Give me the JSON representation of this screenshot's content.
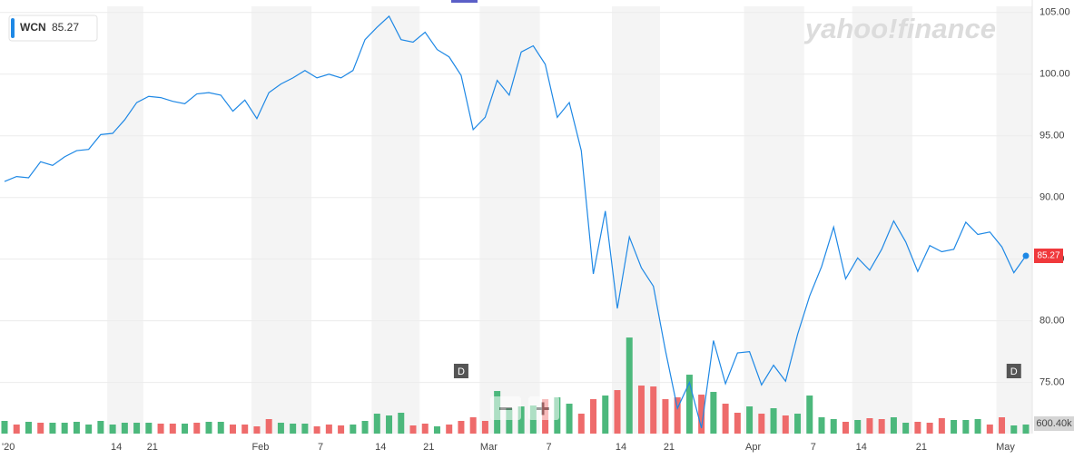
{
  "chart_data": {
    "type": "line",
    "watermark": "yahoo!finance",
    "categories": [
      "'20",
      null,
      null,
      null,
      null,
      null,
      null,
      null,
      null,
      "14",
      null,
      null,
      "21",
      null,
      null,
      null,
      null,
      null,
      null,
      null,
      null,
      "Feb",
      null,
      null,
      null,
      null,
      "7",
      null,
      null,
      null,
      null,
      "14",
      null,
      null,
      null,
      "21",
      null,
      null,
      null,
      null,
      "Mar",
      null,
      null,
      null,
      null,
      "7",
      null,
      null,
      null,
      null,
      null,
      "14",
      null,
      null,
      null,
      "21",
      null,
      null,
      null,
      null,
      null,
      null,
      "Apr",
      null,
      null,
      null,
      null,
      "7",
      null,
      null,
      null,
      "14",
      null,
      null,
      null,
      null,
      "21",
      null,
      null,
      null,
      null,
      null,
      null,
      "May",
      null,
      null
    ],
    "series": [
      {
        "name": "WCN",
        "color": "#1e88e5",
        "values": [
          91.3,
          91.7,
          91.6,
          92.9,
          92.6,
          93.3,
          93.8,
          93.9,
          95.1,
          95.2,
          96.3,
          97.7,
          98.2,
          98.1,
          97.8,
          97.6,
          98.4,
          98.5,
          98.3,
          97.0,
          97.9,
          96.4,
          98.5,
          99.2,
          99.7,
          100.3,
          99.7,
          100.0,
          99.7,
          100.3,
          102.8,
          103.8,
          104.7,
          102.8,
          102.6,
          103.4,
          102.0,
          101.4,
          99.9,
          95.5,
          96.5,
          99.5,
          98.3,
          101.8,
          102.3,
          100.8,
          96.5,
          97.7,
          93.8,
          83.8,
          88.9,
          81.0,
          86.8,
          84.3,
          82.8,
          77.6,
          72.9,
          75.0,
          71.3,
          78.4,
          74.9,
          77.4,
          77.5,
          74.8,
          76.4,
          75.1,
          78.9,
          82.0,
          84.4,
          87.6,
          83.4,
          85.1,
          84.1,
          85.8,
          88.1,
          86.4,
          84.0,
          86.1,
          85.6,
          85.8,
          88.0,
          87.0,
          87.2,
          86.0,
          83.9,
          85.27
        ]
      }
    ],
    "last_value_color": "#f0393c",
    "ylim": [
      71,
      105.5
    ],
    "yticks": [
      {
        "value": 75,
        "label": "75.00"
      },
      {
        "value": 80,
        "label": "80.00"
      },
      {
        "value": 85,
        "label": "85.00"
      },
      {
        "value": 90,
        "label": "90.00"
      },
      {
        "value": 95,
        "label": "95.00"
      },
      {
        "value": 100,
        "label": "100.00"
      },
      {
        "value": 105,
        "label": "105.00"
      }
    ],
    "grid": true,
    "volume": {
      "values": [
        763000,
        545000,
        709000,
        654000,
        654000,
        654000,
        709000,
        545000,
        763000,
        545000,
        654000,
        654000,
        654000,
        600000,
        600000,
        600000,
        654000,
        709000,
        709000,
        545000,
        545000,
        436000,
        872000,
        654000,
        600000,
        600000,
        436000,
        545000,
        491000,
        545000,
        763000,
        1199000,
        1090000,
        1254000,
        491000,
        600000,
        436000,
        545000,
        763000,
        981000,
        763000,
        2562000,
        1526000,
        1635000,
        1690000,
        2071000,
        2180000,
        1799000,
        1199000,
        2071000,
        2289000,
        2616000,
        5777000,
        2889000,
        2834000,
        2071000,
        2180000,
        3543000,
        2344000,
        2507000,
        1799000,
        1254000,
        1635000,
        1199000,
        1526000,
        1090000,
        1199000,
        2289000,
        981000,
        872000,
        709000,
        818000,
        927000,
        872000,
        981000,
        654000,
        709000,
        654000,
        927000,
        818000,
        818000,
        872000,
        545000,
        981000,
        491000,
        545000
      ],
      "colors": [
        "#4cb87c",
        "#ee6b6b",
        "#4cb87c",
        "#ee6b6b",
        "#4cb87c",
        "#4cb87c",
        "#4cb87c",
        "#4cb87c",
        "#4cb87c",
        "#4cb87c",
        "#4cb87c",
        "#4cb87c",
        "#4cb87c",
        "#ee6b6b",
        "#ee6b6b",
        "#4cb87c",
        "#ee6b6b",
        "#4cb87c",
        "#4cb87c",
        "#ee6b6b",
        "#ee6b6b",
        "#ee6b6b",
        "#ee6b6b",
        "#4cb87c",
        "#4cb87c",
        "#4cb87c",
        "#ee6b6b",
        "#ee6b6b",
        "#ee6b6b",
        "#4cb87c",
        "#4cb87c",
        "#4cb87c",
        "#4cb87c",
        "#4cb87c",
        "#ee6b6b",
        "#ee6b6b",
        "#4cb87c",
        "#ee6b6b",
        "#ee6b6b",
        "#ee6b6b",
        "#ee6b6b",
        "#4cb87c",
        "#4cb87c",
        "#4cb87c",
        "#4cb87c",
        "#ee6b6b",
        "#4cb87c",
        "#4cb87c",
        "#ee6b6b",
        "#ee6b6b",
        "#4cb87c",
        "#ee6b6b",
        "#4cb87c",
        "#ee6b6b",
        "#ee6b6b",
        "#ee6b6b",
        "#ee6b6b",
        "#4cb87c",
        "#ee6b6b",
        "#4cb87c",
        "#ee6b6b",
        "#ee6b6b",
        "#4cb87c",
        "#ee6b6b",
        "#4cb87c",
        "#ee6b6b",
        "#4cb87c",
        "#4cb87c",
        "#4cb87c",
        "#4cb87c",
        "#ee6b6b",
        "#4cb87c",
        "#ee6b6b",
        "#ee6b6b",
        "#4cb87c",
        "#4cb87c",
        "#ee6b6b",
        "#ee6b6b",
        "#ee6b6b",
        "#4cb87c",
        "#4cb87c",
        "#4cb87c",
        "#ee6b6b",
        "#ee6b6b",
        "#4cb87c",
        "#4cb87c"
      ],
      "ylim": [
        0,
        6000000
      ],
      "yticks": [
        {
          "value": 600400,
          "label": "600.40k"
        }
      ]
    },
    "annotations": [
      {
        "label": "D",
        "index": 38
      },
      {
        "label": "D",
        "index": 84
      }
    ]
  }
}
